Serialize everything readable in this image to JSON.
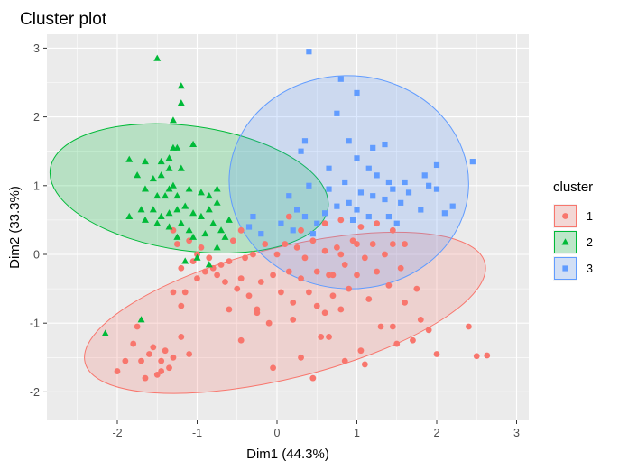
{
  "chart_data": {
    "type": "scatter",
    "title": "Cluster plot",
    "xlabel": "Dim1 (44.3%)",
    "ylabel": "Dim2 (33.3%)",
    "xlim": [
      -2.75,
      3.1
    ],
    "ylim": [
      -2.4,
      3.2
    ],
    "x_ticks": [
      -2,
      -1,
      0,
      1,
      2,
      3
    ],
    "y_ticks": [
      -2,
      -1,
      0,
      1,
      2,
      3
    ],
    "grid": true,
    "legend": {
      "title": "cluster",
      "position": "right"
    },
    "series": [
      {
        "name": "1",
        "color": "#F8766D",
        "marker": "circle",
        "ellipse": {
          "cx": 0.1,
          "cy": -0.85,
          "rx": 2.58,
          "ry": 0.95,
          "angle_deg": 14
        },
        "points": [
          [
            -0.8,
            -0.2
          ],
          [
            -0.75,
            -0.3
          ],
          [
            -0.7,
            -0.15
          ],
          [
            -0.65,
            -0.4
          ],
          [
            -0.6,
            -0.1
          ],
          [
            -0.55,
            0.2
          ],
          [
            -0.5,
            -0.5
          ],
          [
            -0.45,
            -0.35
          ],
          [
            -0.4,
            -0.05
          ],
          [
            -0.35,
            -0.6
          ],
          [
            -0.3,
            0.0
          ],
          [
            -0.25,
            -0.8
          ],
          [
            -0.2,
            -0.4
          ],
          [
            -0.15,
            0.15
          ],
          [
            -0.1,
            -1.0
          ],
          [
            -0.05,
            -0.3
          ],
          [
            0.0,
            0.0
          ],
          [
            0.05,
            -0.55
          ],
          [
            0.1,
            0.15
          ],
          [
            0.15,
            -0.25
          ],
          [
            0.2,
            -0.7
          ],
          [
            0.25,
            0.1
          ],
          [
            0.3,
            -0.35
          ],
          [
            0.35,
            -0.05
          ],
          [
            0.4,
            -0.55
          ],
          [
            0.45,
            0.2
          ],
          [
            0.5,
            -0.25
          ],
          [
            0.55,
            -1.2
          ],
          [
            0.6,
            0.05
          ],
          [
            0.65,
            -0.3
          ],
          [
            0.7,
            -0.6
          ],
          [
            0.75,
            0.1
          ],
          [
            0.8,
            -0.8
          ],
          [
            0.85,
            -0.15
          ],
          [
            0.9,
            -0.5
          ],
          [
            0.95,
            0.2
          ],
          [
            1.0,
            -0.3
          ],
          [
            1.05,
            -1.4
          ],
          [
            1.1,
            -0.05
          ],
          [
            1.15,
            -0.65
          ],
          [
            1.2,
            0.15
          ],
          [
            1.25,
            -0.25
          ],
          [
            1.3,
            -1.05
          ],
          [
            1.35,
            0.0
          ],
          [
            1.4,
            -0.45
          ],
          [
            1.45,
            0.15
          ],
          [
            1.5,
            -1.3
          ],
          [
            1.55,
            -0.2
          ],
          [
            1.6,
            -0.7
          ],
          [
            1.7,
            -1.25
          ],
          [
            1.75,
            -0.5
          ],
          [
            1.8,
            -0.95
          ],
          [
            1.9,
            -1.1
          ],
          [
            2.0,
            -1.45
          ],
          [
            2.4,
            -1.05
          ],
          [
            2.5,
            -1.48
          ],
          [
            2.63,
            -1.47
          ],
          [
            -1.8,
            -1.3
          ],
          [
            -1.75,
            -1.05
          ],
          [
            -1.7,
            -1.55
          ],
          [
            -1.6,
            -1.45
          ],
          [
            -1.55,
            -1.35
          ],
          [
            -1.5,
            -1.75
          ],
          [
            -1.45,
            -1.55
          ],
          [
            -1.4,
            -1.4
          ],
          [
            -1.35,
            -1.65
          ],
          [
            -1.3,
            -1.5
          ],
          [
            -1.2,
            -1.2
          ],
          [
            -1.1,
            -1.45
          ],
          [
            -2.0,
            -1.7
          ],
          [
            -1.9,
            -1.55
          ],
          [
            -1.65,
            -1.8
          ],
          [
            -1.45,
            -1.7
          ],
          [
            -0.45,
            -1.25
          ],
          [
            -0.05,
            -1.65
          ],
          [
            0.3,
            -1.5
          ],
          [
            0.45,
            -1.8
          ],
          [
            0.65,
            -1.2
          ],
          [
            0.85,
            -1.55
          ],
          [
            1.1,
            -1.6
          ],
          [
            1.45,
            -1.05
          ],
          [
            -1.3,
            -0.55
          ],
          [
            -1.2,
            -0.2
          ],
          [
            -1.15,
            -0.55
          ],
          [
            -1.05,
            -0.1
          ],
          [
            -1.0,
            0.0
          ],
          [
            -1.0,
            -0.35
          ],
          [
            -0.95,
            0.1
          ],
          [
            -0.9,
            -0.25
          ],
          [
            -1.25,
            0.15
          ],
          [
            -1.1,
            0.2
          ],
          [
            -1.3,
            0.35
          ],
          [
            -1.2,
            -0.75
          ],
          [
            -0.85,
            -0.05
          ],
          [
            -0.6,
            -0.8
          ],
          [
            -0.25,
            -0.85
          ],
          [
            0.2,
            -0.95
          ],
          [
            0.5,
            -0.75
          ],
          [
            0.6,
            -0.85
          ],
          [
            0.7,
            -0.3
          ],
          [
            0.8,
            0.0
          ],
          [
            -0.45,
            0.35
          ],
          [
            0.3,
            0.35
          ],
          [
            0.6,
            0.45
          ],
          [
            0.8,
            0.5
          ],
          [
            1.05,
            0.4
          ],
          [
            1.25,
            0.45
          ],
          [
            1.45,
            0.35
          ],
          [
            1.6,
            0.15
          ],
          [
            1.0,
            0.15
          ],
          [
            0.15,
            0.55
          ]
        ]
      },
      {
        "name": "2",
        "color": "#00BA38",
        "marker": "triangle",
        "ellipse": {
          "cx": -1.1,
          "cy": 0.96,
          "rx": 0.78,
          "ry": 2.04,
          "angle_deg": 82
        },
        "points": [
          [
            -1.5,
            2.85
          ],
          [
            -1.2,
            2.45
          ],
          [
            -1.2,
            2.2
          ],
          [
            -1.3,
            1.95
          ],
          [
            -1.3,
            1.55
          ],
          [
            -1.05,
            1.6
          ],
          [
            -1.85,
            1.38
          ],
          [
            -1.65,
            1.35
          ],
          [
            -1.45,
            1.35
          ],
          [
            -1.35,
            1.4
          ],
          [
            -1.25,
            1.55
          ],
          [
            -1.45,
            1.15
          ],
          [
            -1.55,
            1.1
          ],
          [
            -1.75,
            1.15
          ],
          [
            -1.35,
            1.25
          ],
          [
            -1.2,
            1.25
          ],
          [
            -1.5,
            0.85
          ],
          [
            -1.65,
            0.95
          ],
          [
            -1.35,
            0.95
          ],
          [
            -1.4,
            0.85
          ],
          [
            -1.25,
            0.85
          ],
          [
            -1.1,
            0.95
          ],
          [
            -0.95,
            0.9
          ],
          [
            -0.85,
            0.85
          ],
          [
            -0.75,
            0.95
          ],
          [
            -0.75,
            0.75
          ],
          [
            -1.85,
            0.55
          ],
          [
            -1.7,
            0.65
          ],
          [
            -1.55,
            0.65
          ],
          [
            -1.45,
            0.55
          ],
          [
            -1.35,
            0.6
          ],
          [
            -1.25,
            0.65
          ],
          [
            -1.15,
            0.7
          ],
          [
            -1.05,
            0.6
          ],
          [
            -0.95,
            0.55
          ],
          [
            -0.85,
            0.65
          ],
          [
            -1.65,
            0.5
          ],
          [
            -1.5,
            0.45
          ],
          [
            -1.35,
            0.4
          ],
          [
            -1.2,
            0.45
          ],
          [
            -1.1,
            0.35
          ],
          [
            -1.25,
            0.25
          ],
          [
            -1.05,
            0.25
          ],
          [
            -0.9,
            0.3
          ],
          [
            -0.8,
            0.45
          ],
          [
            -0.7,
            0.35
          ],
          [
            -0.65,
            0.25
          ],
          [
            -0.75,
            0.1
          ],
          [
            -1.15,
            -0.1
          ],
          [
            -1.0,
            -0.05
          ],
          [
            -0.85,
            -0.15
          ],
          [
            -1.7,
            -0.95
          ],
          [
            -2.15,
            -1.15
          ],
          [
            -1.3,
            1.0
          ],
          [
            -0.6,
            0.5
          ]
        ]
      },
      {
        "name": "3",
        "color": "#619CFF",
        "marker": "square",
        "ellipse": {
          "cx": 0.9,
          "cy": 1.05,
          "rx": 1.5,
          "ry": 1.55,
          "angle_deg": -3
        },
        "points": [
          [
            0.4,
            2.95
          ],
          [
            0.8,
            2.55
          ],
          [
            1.0,
            2.35
          ],
          [
            0.75,
            2.05
          ],
          [
            0.35,
            1.65
          ],
          [
            0.3,
            1.5
          ],
          [
            0.9,
            1.65
          ],
          [
            1.2,
            1.55
          ],
          [
            1.35,
            1.6
          ],
          [
            1.0,
            1.4
          ],
          [
            0.65,
            1.25
          ],
          [
            1.15,
            1.25
          ],
          [
            2.45,
            1.35
          ],
          [
            2.0,
            1.3
          ],
          [
            1.85,
            1.15
          ],
          [
            1.6,
            1.05
          ],
          [
            1.9,
            1.0
          ],
          [
            1.4,
            1.05
          ],
          [
            0.85,
            1.05
          ],
          [
            0.4,
            1.0
          ],
          [
            0.65,
            0.95
          ],
          [
            1.05,
            0.9
          ],
          [
            1.2,
            0.85
          ],
          [
            1.35,
            0.8
          ],
          [
            1.55,
            0.75
          ],
          [
            1.8,
            0.65
          ],
          [
            2.1,
            0.6
          ],
          [
            2.2,
            0.7
          ],
          [
            2.0,
            0.95
          ],
          [
            1.25,
            1.15
          ],
          [
            0.15,
            0.85
          ],
          [
            0.25,
            0.65
          ],
          [
            0.35,
            0.55
          ],
          [
            0.5,
            0.45
          ],
          [
            0.6,
            0.6
          ],
          [
            0.75,
            0.7
          ],
          [
            0.9,
            0.75
          ],
          [
            1.0,
            0.65
          ],
          [
            1.15,
            0.55
          ],
          [
            1.4,
            0.55
          ],
          [
            1.5,
            0.45
          ],
          [
            0.95,
            0.5
          ],
          [
            -0.3,
            0.55
          ],
          [
            -0.35,
            0.4
          ],
          [
            -0.2,
            0.3
          ],
          [
            0.05,
            0.45
          ],
          [
            0.2,
            0.35
          ],
          [
            0.45,
            0.3
          ],
          [
            1.65,
            0.9
          ],
          [
            1.45,
            0.95
          ]
        ]
      }
    ]
  }
}
